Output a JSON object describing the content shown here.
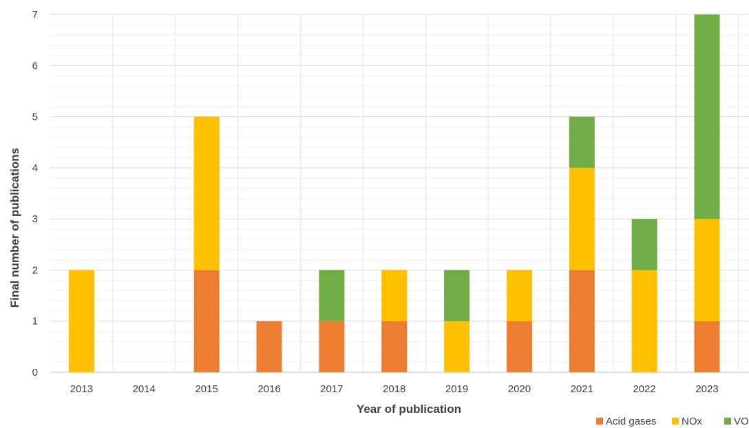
{
  "chart_data": {
    "type": "bar",
    "stacked": true,
    "categories": [
      "2013",
      "2014",
      "2015",
      "2016",
      "2017",
      "2018",
      "2019",
      "2020",
      "2021",
      "2022",
      "2023"
    ],
    "series": [
      {
        "name": "Acid gases",
        "color": "#ED7D31",
        "values": [
          0,
          0,
          2,
          1,
          1,
          1,
          0,
          1,
          2,
          0,
          1
        ]
      },
      {
        "name": "NOx",
        "color": "#FFC000",
        "values": [
          2,
          0,
          3,
          0,
          0,
          1,
          1,
          1,
          2,
          2,
          2
        ]
      },
      {
        "name": "VOCs",
        "color": "#70AD47",
        "values": [
          0,
          0,
          0,
          0,
          1,
          0,
          1,
          0,
          1,
          1,
          4
        ]
      }
    ],
    "xlabel": "Year of publication",
    "ylabel": "Final number of publications",
    "ylim": [
      0,
      7
    ],
    "yticks": [
      0,
      1,
      2,
      3,
      4,
      5,
      6,
      7
    ],
    "grid": true,
    "legend_position": "bottom-right"
  }
}
